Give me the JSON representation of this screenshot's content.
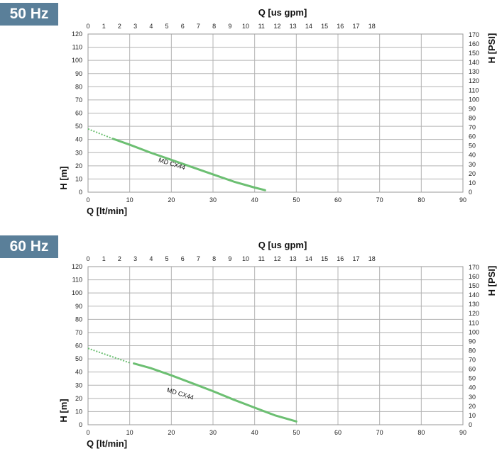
{
  "chart_data": [
    {
      "type": "line",
      "frequency_label": "50 Hz",
      "x_bottom_label": "Q [lt/min]",
      "x_top_label": "Q [us gpm]",
      "y_left_label": "H [m]",
      "y_right_label": "H [PSI]",
      "xlim": [
        0,
        90
      ],
      "ylim": [
        0,
        120
      ],
      "x_ticks": [
        0,
        10,
        20,
        30,
        40,
        50,
        60,
        70,
        80,
        90
      ],
      "y_ticks": [
        0,
        10,
        20,
        30,
        40,
        50,
        60,
        70,
        80,
        90,
        100,
        110,
        120
      ],
      "top_ticks": [
        0,
        1,
        2,
        3,
        4,
        5,
        6,
        7,
        8,
        9,
        10,
        11,
        12,
        13,
        14,
        15,
        16,
        17,
        18
      ],
      "right_ticks": [
        0,
        10,
        20,
        30,
        40,
        50,
        60,
        70,
        80,
        90,
        100,
        110,
        120,
        130,
        140,
        150,
        160,
        170
      ],
      "grid": true,
      "curve_color": "#6cbf72",
      "series": [
        {
          "name": "MD CX44",
          "dashed": {
            "x": [
              0,
              6
            ],
            "y": [
              48,
              40.5
            ]
          },
          "x": [
            6,
            10,
            15,
            20,
            25,
            30,
            35,
            40,
            42.5
          ],
          "y": [
            40.5,
            36,
            30,
            24.5,
            19,
            13.5,
            8,
            3.5,
            1.5
          ]
        }
      ],
      "annotations": [
        {
          "text": "MD CX44",
          "x": 20,
          "y": 20
        }
      ]
    },
    {
      "type": "line",
      "frequency_label": "60 Hz",
      "x_bottom_label": "Q [lt/min]",
      "x_top_label": "Q [us gpm]",
      "y_left_label": "H [m]",
      "y_right_label": "H [PSI]",
      "xlim": [
        0,
        90
      ],
      "ylim": [
        0,
        120
      ],
      "x_ticks": [
        0,
        10,
        20,
        30,
        40,
        50,
        60,
        70,
        80,
        90
      ],
      "y_ticks": [
        0,
        10,
        20,
        30,
        40,
        50,
        60,
        70,
        80,
        90,
        100,
        110,
        120
      ],
      "top_ticks": [
        0,
        1,
        2,
        3,
        4,
        5,
        6,
        7,
        8,
        9,
        10,
        11,
        12,
        13,
        14,
        15,
        16,
        17,
        18
      ],
      "right_ticks": [
        0,
        10,
        20,
        30,
        40,
        50,
        60,
        70,
        80,
        90,
        100,
        110,
        120,
        130,
        140,
        150,
        160,
        170
      ],
      "grid": true,
      "curve_color": "#6cbf72",
      "series": [
        {
          "name": "MD CX44",
          "dashed": {
            "x": [
              0,
              10
            ],
            "y": [
              58,
              47
            ]
          },
          "x": [
            11,
            15,
            20,
            25,
            30,
            35,
            40,
            45,
            50
          ],
          "y": [
            46.5,
            43,
            37.5,
            31.5,
            25.5,
            19,
            13,
            7,
            2.5
          ]
        }
      ],
      "annotations": [
        {
          "text": "MD CX44",
          "x": 22,
          "y": 22
        }
      ]
    }
  ]
}
